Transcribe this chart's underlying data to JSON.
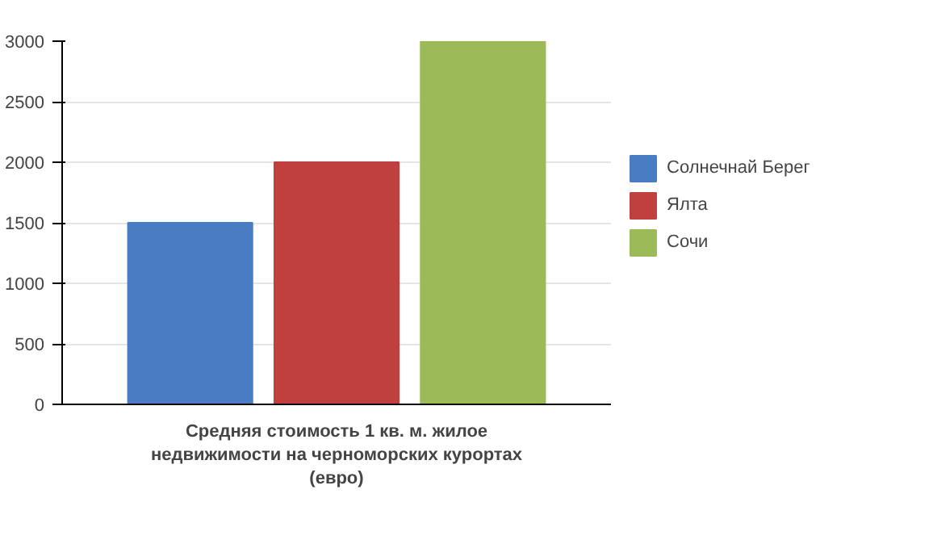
{
  "chart_data": {
    "type": "bar",
    "categories": [
      "Средняя стоимость 1 кв. м. жилое недвижимости на черноморских курортах (евро)"
    ],
    "series": [
      {
        "name": "Солнечнай Берег",
        "color": "#4a7cc4",
        "values": [
          1500
        ]
      },
      {
        "name": "Ялта",
        "color": "#c0403d",
        "values": [
          2000
        ]
      },
      {
        "name": "Сочи",
        "color": "#9bbb59",
        "values": [
          3000
        ]
      }
    ],
    "ylim": [
      0,
      3000
    ],
    "yticks": [
      0,
      500,
      1000,
      1500,
      2000,
      2500,
      3000
    ],
    "grid": "y",
    "legend": "right"
  }
}
